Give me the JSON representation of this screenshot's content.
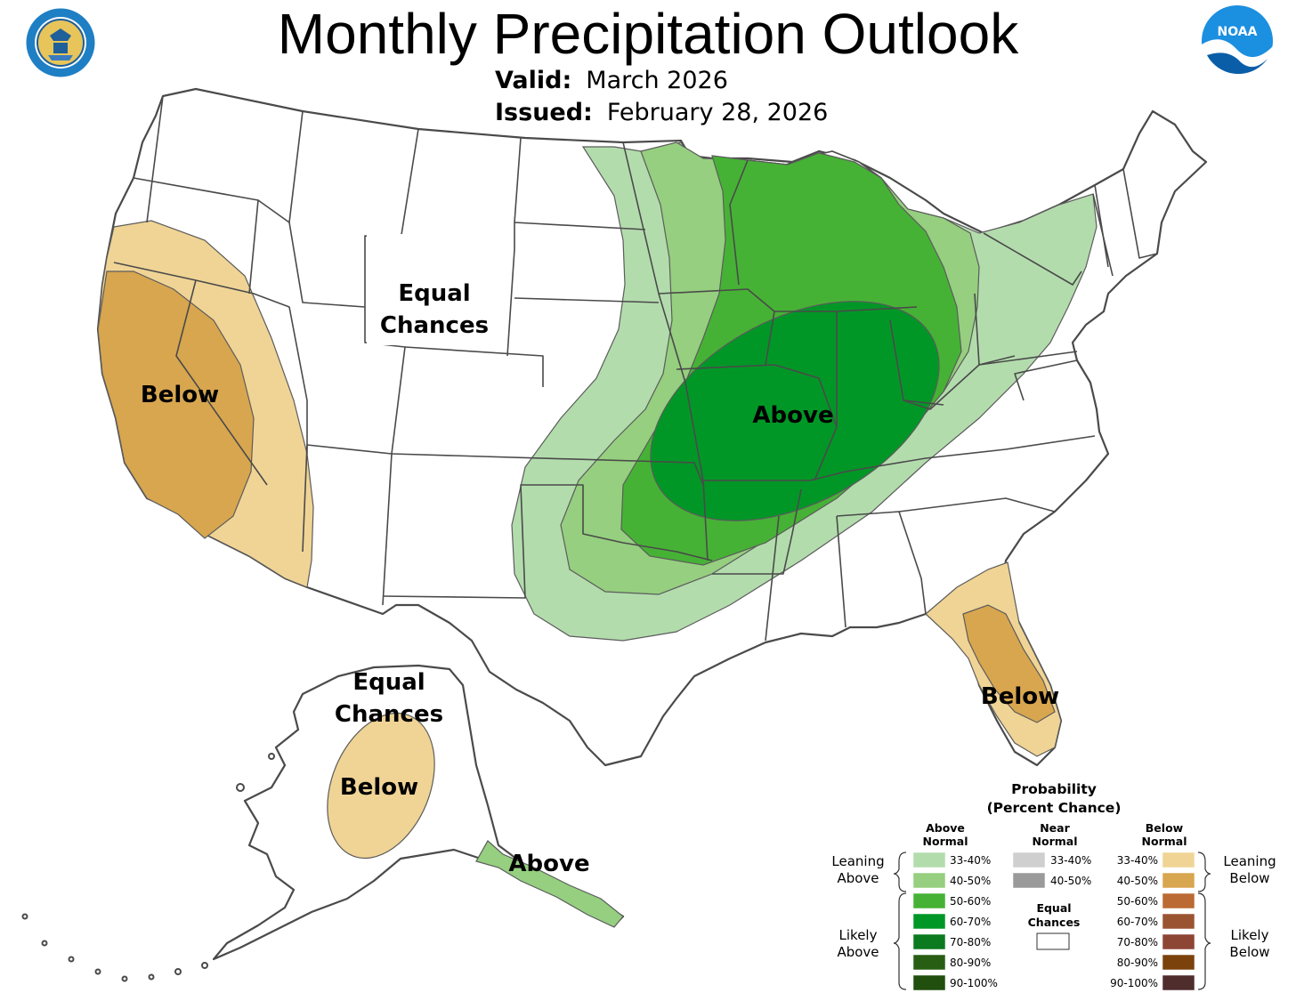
{
  "header": {
    "title": "Monthly Precipitation Outlook",
    "valid_label": "Valid:",
    "valid_value": "March 2026",
    "issued_label": "Issued:",
    "issued_value": "February 28, 2026"
  },
  "logos": {
    "left": {
      "icon": "doc-seal-icon",
      "text": "DEPARTMENT OF COMMERCE · UNITED STATES OF AMERICA"
    },
    "right": {
      "icon": "noaa-logo-icon",
      "text": "NOAA"
    }
  },
  "map_labels": {
    "conus_equal_line1": "Equal",
    "conus_equal_line2": "Chances",
    "west_below": "Below",
    "central_above": "Above",
    "florida_below": "Below",
    "alaska_equal_line1": "Equal",
    "alaska_equal_line2": "Chances",
    "alaska_below": "Below",
    "alaska_above": "Above"
  },
  "legend": {
    "title_line1": "Probability",
    "title_line2": "(Percent Chance)",
    "above_head_line1": "Above",
    "above_head_line2": "Normal",
    "near_head_line1": "Near",
    "near_head_line2": "Normal",
    "below_head_line1": "Below",
    "below_head_line2": "Normal",
    "equal_line1": "Equal",
    "equal_line2": "Chances",
    "leaning_above_line1": "Leaning",
    "leaning_above_line2": "Above",
    "likely_above_line1": "Likely",
    "likely_above_line2": "Above",
    "leaning_below_line1": "Leaning",
    "leaning_below_line2": "Below",
    "likely_below_line1": "Likely",
    "likely_below_line2": "Below",
    "above": [
      {
        "label": "33-40%",
        "color": "#b3dcad"
      },
      {
        "label": "40-50%",
        "color": "#95cf7f"
      },
      {
        "label": "50-60%",
        "color": "#46b235"
      },
      {
        "label": "60-70%",
        "color": "#019726"
      },
      {
        "label": "70-80%",
        "color": "#0c7a1f"
      },
      {
        "label": "80-90%",
        "color": "#285e14"
      },
      {
        "label": "90-100%",
        "color": "#214f0e"
      }
    ],
    "near": [
      {
        "label": "33-40%",
        "color": "#cfcfcf"
      },
      {
        "label": "40-50%",
        "color": "#9a9a9a"
      }
    ],
    "below": [
      {
        "label": "33-40%",
        "color": "#f0d495"
      },
      {
        "label": "40-50%",
        "color": "#d8a64f"
      },
      {
        "label": "50-60%",
        "color": "#bb6a34"
      },
      {
        "label": "60-70%",
        "color": "#9b5432"
      },
      {
        "label": "70-80%",
        "color": "#8d4534"
      },
      {
        "label": "80-90%",
        "color": "#7c420c"
      },
      {
        "label": "90-100%",
        "color": "#4f2d2d"
      }
    ]
  }
}
